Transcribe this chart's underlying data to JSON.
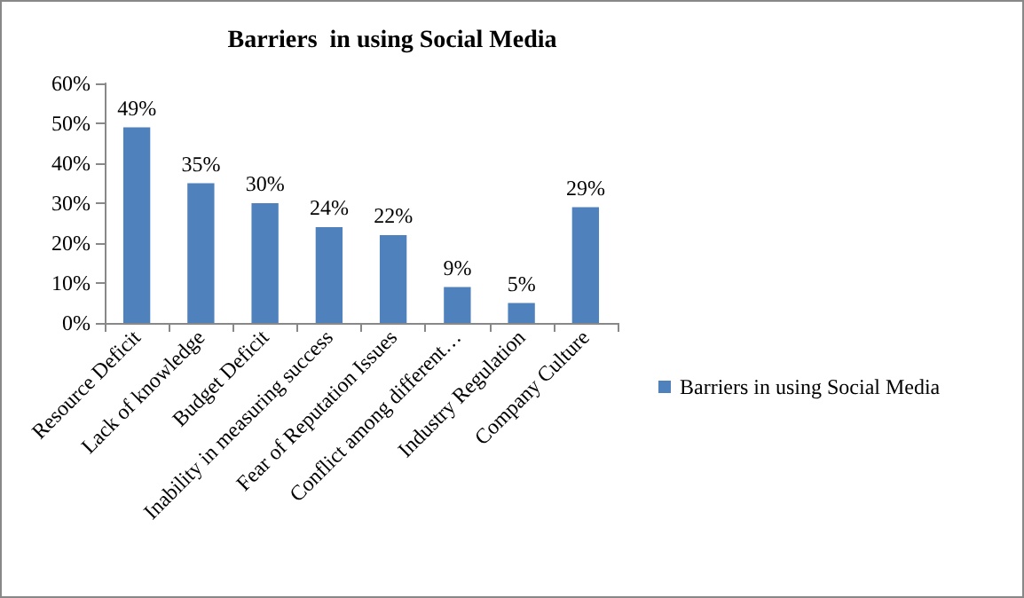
{
  "chart_data": {
    "type": "bar",
    "title": "Barriers  in using Social Media",
    "categories": [
      "Resource Deficit",
      "Lack of knowledge",
      "Budget Deficit",
      "Inability in measuring success",
      "Fear of Reputation Issues",
      "Conflict among different…",
      "Industry Regulation",
      "Company Culture"
    ],
    "series": [
      {
        "name": "Barriers in using Social Media",
        "color": "#4f81bd",
        "values": [
          49,
          35,
          30,
          24,
          22,
          9,
          5,
          29
        ],
        "value_labels": [
          "49%",
          "35%",
          "30%",
          "24%",
          "22%",
          "9%",
          "5%",
          "29%"
        ]
      }
    ],
    "ylim": [
      0,
      60
    ],
    "yticks": [
      {
        "value": 0,
        "label": "0%"
      },
      {
        "value": 10,
        "label": "10%"
      },
      {
        "value": 20,
        "label": "20%"
      },
      {
        "value": 30,
        "label": "30%"
      },
      {
        "value": 40,
        "label": "40%"
      },
      {
        "value": 50,
        "label": "50%"
      },
      {
        "value": 60,
        "label": "60%"
      }
    ],
    "grid": false,
    "legend": "right"
  }
}
